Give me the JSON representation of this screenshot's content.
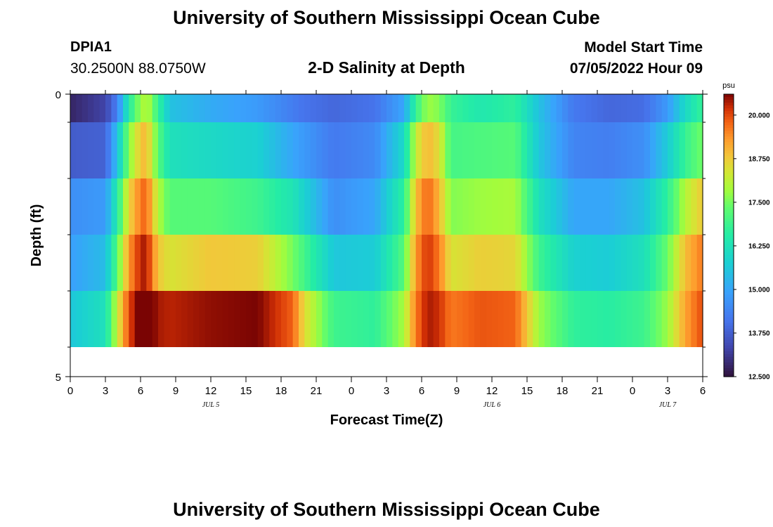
{
  "header": {
    "title": "University of Southern Mississippi Ocean Cube",
    "station": "DPIA1",
    "coords": "30.2500N  88.0750W",
    "subtitle": "2-D Salinity at Depth",
    "model_start_label": "Model Start Time",
    "model_start_value": "07/05/2022 Hour 09"
  },
  "footer": {
    "title": "University of Southern Mississippi Ocean Cube"
  },
  "chart_data": {
    "type": "heatmap",
    "xlabel": "Forecast Time(Z)",
    "ylabel": "Depth (ft)",
    "x_tick_labels": [
      "0",
      "3",
      "6",
      "9",
      "12",
      "15",
      "18",
      "21",
      "0",
      "3",
      "6",
      "9",
      "12",
      "15",
      "18",
      "21",
      "0",
      "3",
      "6"
    ],
    "x_day_labels": [
      {
        "label": "JUL 5",
        "hour": 12
      },
      {
        "label": "JUL 6",
        "hour": 36
      },
      {
        "label": "JUL 7",
        "hour": 51
      }
    ],
    "x_range_hours": [
      0,
      54
    ],
    "y_tick_labels": [
      "0",
      "5"
    ],
    "y_range": [
      0,
      5
    ],
    "depth_rows": 5,
    "colorbar": {
      "unit": "psu",
      "min": 12.5,
      "max": 20.6,
      "tick_labels": [
        "12.500",
        "13.750",
        "15.000",
        "16.250",
        "17.500",
        "18.750",
        "20.000"
      ],
      "tick_values": [
        12.5,
        13.75,
        15.0,
        16.25,
        17.5,
        18.75,
        20.0
      ]
    },
    "row_profiles": [
      {
        "row": "surface",
        "points": [
          [
            0,
            12.8
          ],
          [
            3,
            13.3
          ],
          [
            4,
            14.3
          ],
          [
            5,
            16.5
          ],
          [
            6,
            17.8
          ],
          [
            6.6,
            18.0
          ],
          [
            7.5,
            16.8
          ],
          [
            8.5,
            15.5
          ],
          [
            12,
            15.1
          ],
          [
            16,
            14.8
          ],
          [
            20,
            14.1
          ],
          [
            22.5,
            13.9
          ],
          [
            26,
            14.1
          ],
          [
            28.5,
            15.0
          ],
          [
            29.5,
            16.8
          ],
          [
            30.5,
            17.8
          ],
          [
            31.5,
            17.6
          ],
          [
            32.5,
            16.8
          ],
          [
            35,
            16.4
          ],
          [
            38,
            16.7
          ],
          [
            40,
            15.5
          ],
          [
            43,
            14.2
          ],
          [
            46,
            13.9
          ],
          [
            49,
            14.0
          ],
          [
            51,
            14.8
          ],
          [
            52.5,
            16.0
          ],
          [
            54,
            16.8
          ]
        ]
      },
      {
        "row": "upper",
        "points": [
          [
            0,
            13.7
          ],
          [
            3,
            13.8
          ],
          [
            4,
            15.5
          ],
          [
            5,
            17.6
          ],
          [
            6,
            18.8
          ],
          [
            6.5,
            19.0
          ],
          [
            7.5,
            17.2
          ],
          [
            8.5,
            16.2
          ],
          [
            12,
            16.0
          ],
          [
            16,
            15.8
          ],
          [
            19,
            15.0
          ],
          [
            22.5,
            14.2
          ],
          [
            26,
            14.5
          ],
          [
            28.5,
            16.0
          ],
          [
            29.5,
            18.2
          ],
          [
            30.5,
            19.0
          ],
          [
            31.5,
            18.5
          ],
          [
            32.5,
            17.0
          ],
          [
            35,
            17.1
          ],
          [
            38,
            17.2
          ],
          [
            40,
            15.6
          ],
          [
            43,
            14.4
          ],
          [
            46,
            14.3
          ],
          [
            49,
            14.6
          ],
          [
            51,
            15.7
          ],
          [
            52.5,
            16.8
          ],
          [
            54,
            17.5
          ]
        ]
      },
      {
        "row": "middle",
        "points": [
          [
            0,
            14.6
          ],
          [
            3,
            14.8
          ],
          [
            4,
            16.5
          ],
          [
            5,
            18.6
          ],
          [
            6,
            19.6
          ],
          [
            6.5,
            19.8
          ],
          [
            7.5,
            18.0
          ],
          [
            8.5,
            17.2
          ],
          [
            12,
            17.2
          ],
          [
            16,
            16.9
          ],
          [
            19,
            16.3
          ],
          [
            22.5,
            14.6
          ],
          [
            26,
            15.0
          ],
          [
            28.5,
            16.7
          ],
          [
            29.5,
            18.9
          ],
          [
            30.5,
            19.8
          ],
          [
            31.5,
            19.0
          ],
          [
            32.5,
            17.6
          ],
          [
            35,
            17.8
          ],
          [
            38,
            17.9
          ],
          [
            40,
            16.2
          ],
          [
            43,
            15.0
          ],
          [
            46,
            15.0
          ],
          [
            49,
            15.5
          ],
          [
            51,
            16.7
          ],
          [
            52.5,
            18.0
          ],
          [
            54,
            18.8
          ]
        ]
      },
      {
        "row": "lower",
        "points": [
          [
            0,
            14.9
          ],
          [
            3,
            15.4
          ],
          [
            4,
            17.2
          ],
          [
            5,
            19.3
          ],
          [
            6,
            20.3
          ],
          [
            6.5,
            20.4
          ],
          [
            7.5,
            18.8
          ],
          [
            8.5,
            18.4
          ],
          [
            12,
            18.8
          ],
          [
            16,
            18.7
          ],
          [
            19,
            17.5
          ],
          [
            22.5,
            15.6
          ],
          [
            26,
            15.7
          ],
          [
            28.5,
            17.2
          ],
          [
            29.5,
            19.3
          ],
          [
            30.5,
            20.2
          ],
          [
            31.5,
            19.6
          ],
          [
            32.5,
            18.4
          ],
          [
            35,
            18.7
          ],
          [
            38,
            18.6
          ],
          [
            40,
            16.9
          ],
          [
            43,
            15.8
          ],
          [
            46,
            15.7
          ],
          [
            49,
            16.2
          ],
          [
            51,
            17.4
          ],
          [
            52.5,
            18.9
          ],
          [
            54,
            19.6
          ]
        ]
      },
      {
        "row": "bottom",
        "points": [
          [
            0,
            15.6
          ],
          [
            3,
            16.2
          ],
          [
            4,
            18.2
          ],
          [
            5,
            20.0
          ],
          [
            6,
            20.8
          ],
          [
            6.5,
            20.9
          ],
          [
            7.5,
            20.4
          ],
          [
            8.5,
            20.3
          ],
          [
            12,
            20.5
          ],
          [
            16,
            20.6
          ],
          [
            19,
            19.8
          ],
          [
            20,
            18.5
          ],
          [
            22.5,
            16.9
          ],
          [
            26,
            16.7
          ],
          [
            28.5,
            17.9
          ],
          [
            29.5,
            19.6
          ],
          [
            30.5,
            20.4
          ],
          [
            31.5,
            20.2
          ],
          [
            32.5,
            19.6
          ],
          [
            35,
            19.9
          ],
          [
            38,
            19.8
          ],
          [
            40,
            17.8
          ],
          [
            43,
            16.7
          ],
          [
            46,
            16.6
          ],
          [
            49,
            16.9
          ],
          [
            51,
            17.8
          ],
          [
            52.5,
            19.2
          ],
          [
            54,
            20.0
          ]
        ]
      }
    ]
  }
}
